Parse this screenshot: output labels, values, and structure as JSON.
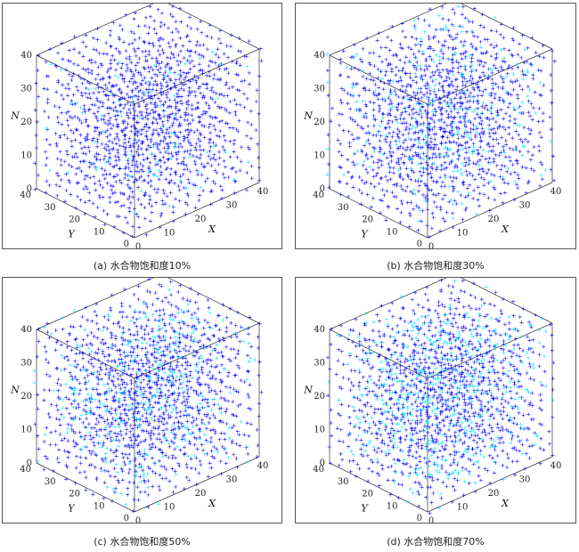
{
  "chart_data": [
    {
      "type": "scatter",
      "subtype": "3d-lattice",
      "caption": "(a) 水合物饱和度10%",
      "saturation_percent": 10,
      "xlabel": "X",
      "ylabel": "Y",
      "zlabel": "N",
      "xticks": [
        "0",
        "10",
        "20",
        "30",
        "40"
      ],
      "yticks": [
        "0",
        "10",
        "20",
        "30",
        "40"
      ],
      "zticks": [
        "0",
        "10",
        "20",
        "30",
        "40"
      ],
      "xlim": [
        0,
        40
      ],
      "ylim": [
        0,
        40
      ],
      "zlim": [
        0,
        40
      ],
      "series": [
        {
          "marker": "+",
          "color": "#0000ff"
        },
        {
          "marker": "+",
          "color": "#00e5ff"
        }
      ]
    },
    {
      "type": "scatter",
      "subtype": "3d-lattice",
      "caption": "(b) 水合物饱和度30%",
      "saturation_percent": 30,
      "xlabel": "X",
      "ylabel": "Y",
      "zlabel": "N",
      "xticks": [
        "0",
        "10",
        "20",
        "30",
        "40"
      ],
      "yticks": [
        "0",
        "10",
        "20",
        "30",
        "40"
      ],
      "zticks": [
        "0",
        "10",
        "20",
        "30",
        "40"
      ],
      "xlim": [
        0,
        40
      ],
      "ylim": [
        0,
        40
      ],
      "zlim": [
        0,
        40
      ],
      "series": [
        {
          "marker": "+",
          "color": "#0000ff"
        },
        {
          "marker": "+",
          "color": "#00e5ff"
        }
      ]
    },
    {
      "type": "scatter",
      "subtype": "3d-lattice",
      "caption": "(c) 水合物饱和度50%",
      "saturation_percent": 50,
      "xlabel": "X",
      "ylabel": "Y",
      "zlabel": "N",
      "xticks": [
        "0",
        "10",
        "20",
        "30",
        "40"
      ],
      "yticks": [
        "0",
        "10",
        "20",
        "30",
        "40"
      ],
      "zticks": [
        "0",
        "10",
        "20",
        "30",
        "40"
      ],
      "xlim": [
        0,
        40
      ],
      "ylim": [
        0,
        40
      ],
      "zlim": [
        0,
        40
      ],
      "series": [
        {
          "marker": "+",
          "color": "#0000ff"
        },
        {
          "marker": "+",
          "color": "#00e5ff"
        }
      ]
    },
    {
      "type": "scatter",
      "subtype": "3d-lattice",
      "caption": "(d) 水合物饱和度70%",
      "saturation_percent": 70,
      "xlabel": "X",
      "ylabel": "Y",
      "zlabel": "N",
      "xticks": [
        "0",
        "10",
        "20",
        "30",
        "40"
      ],
      "yticks": [
        "0",
        "10",
        "20",
        "30",
        "40"
      ],
      "zticks": [
        "0",
        "10",
        "20",
        "30",
        "40"
      ],
      "xlim": [
        0,
        40
      ],
      "ylim": [
        0,
        40
      ],
      "zlim": [
        0,
        40
      ],
      "series": [
        {
          "marker": "+",
          "color": "#0000ff"
        },
        {
          "marker": "+",
          "color": "#00e5ff"
        }
      ]
    }
  ]
}
